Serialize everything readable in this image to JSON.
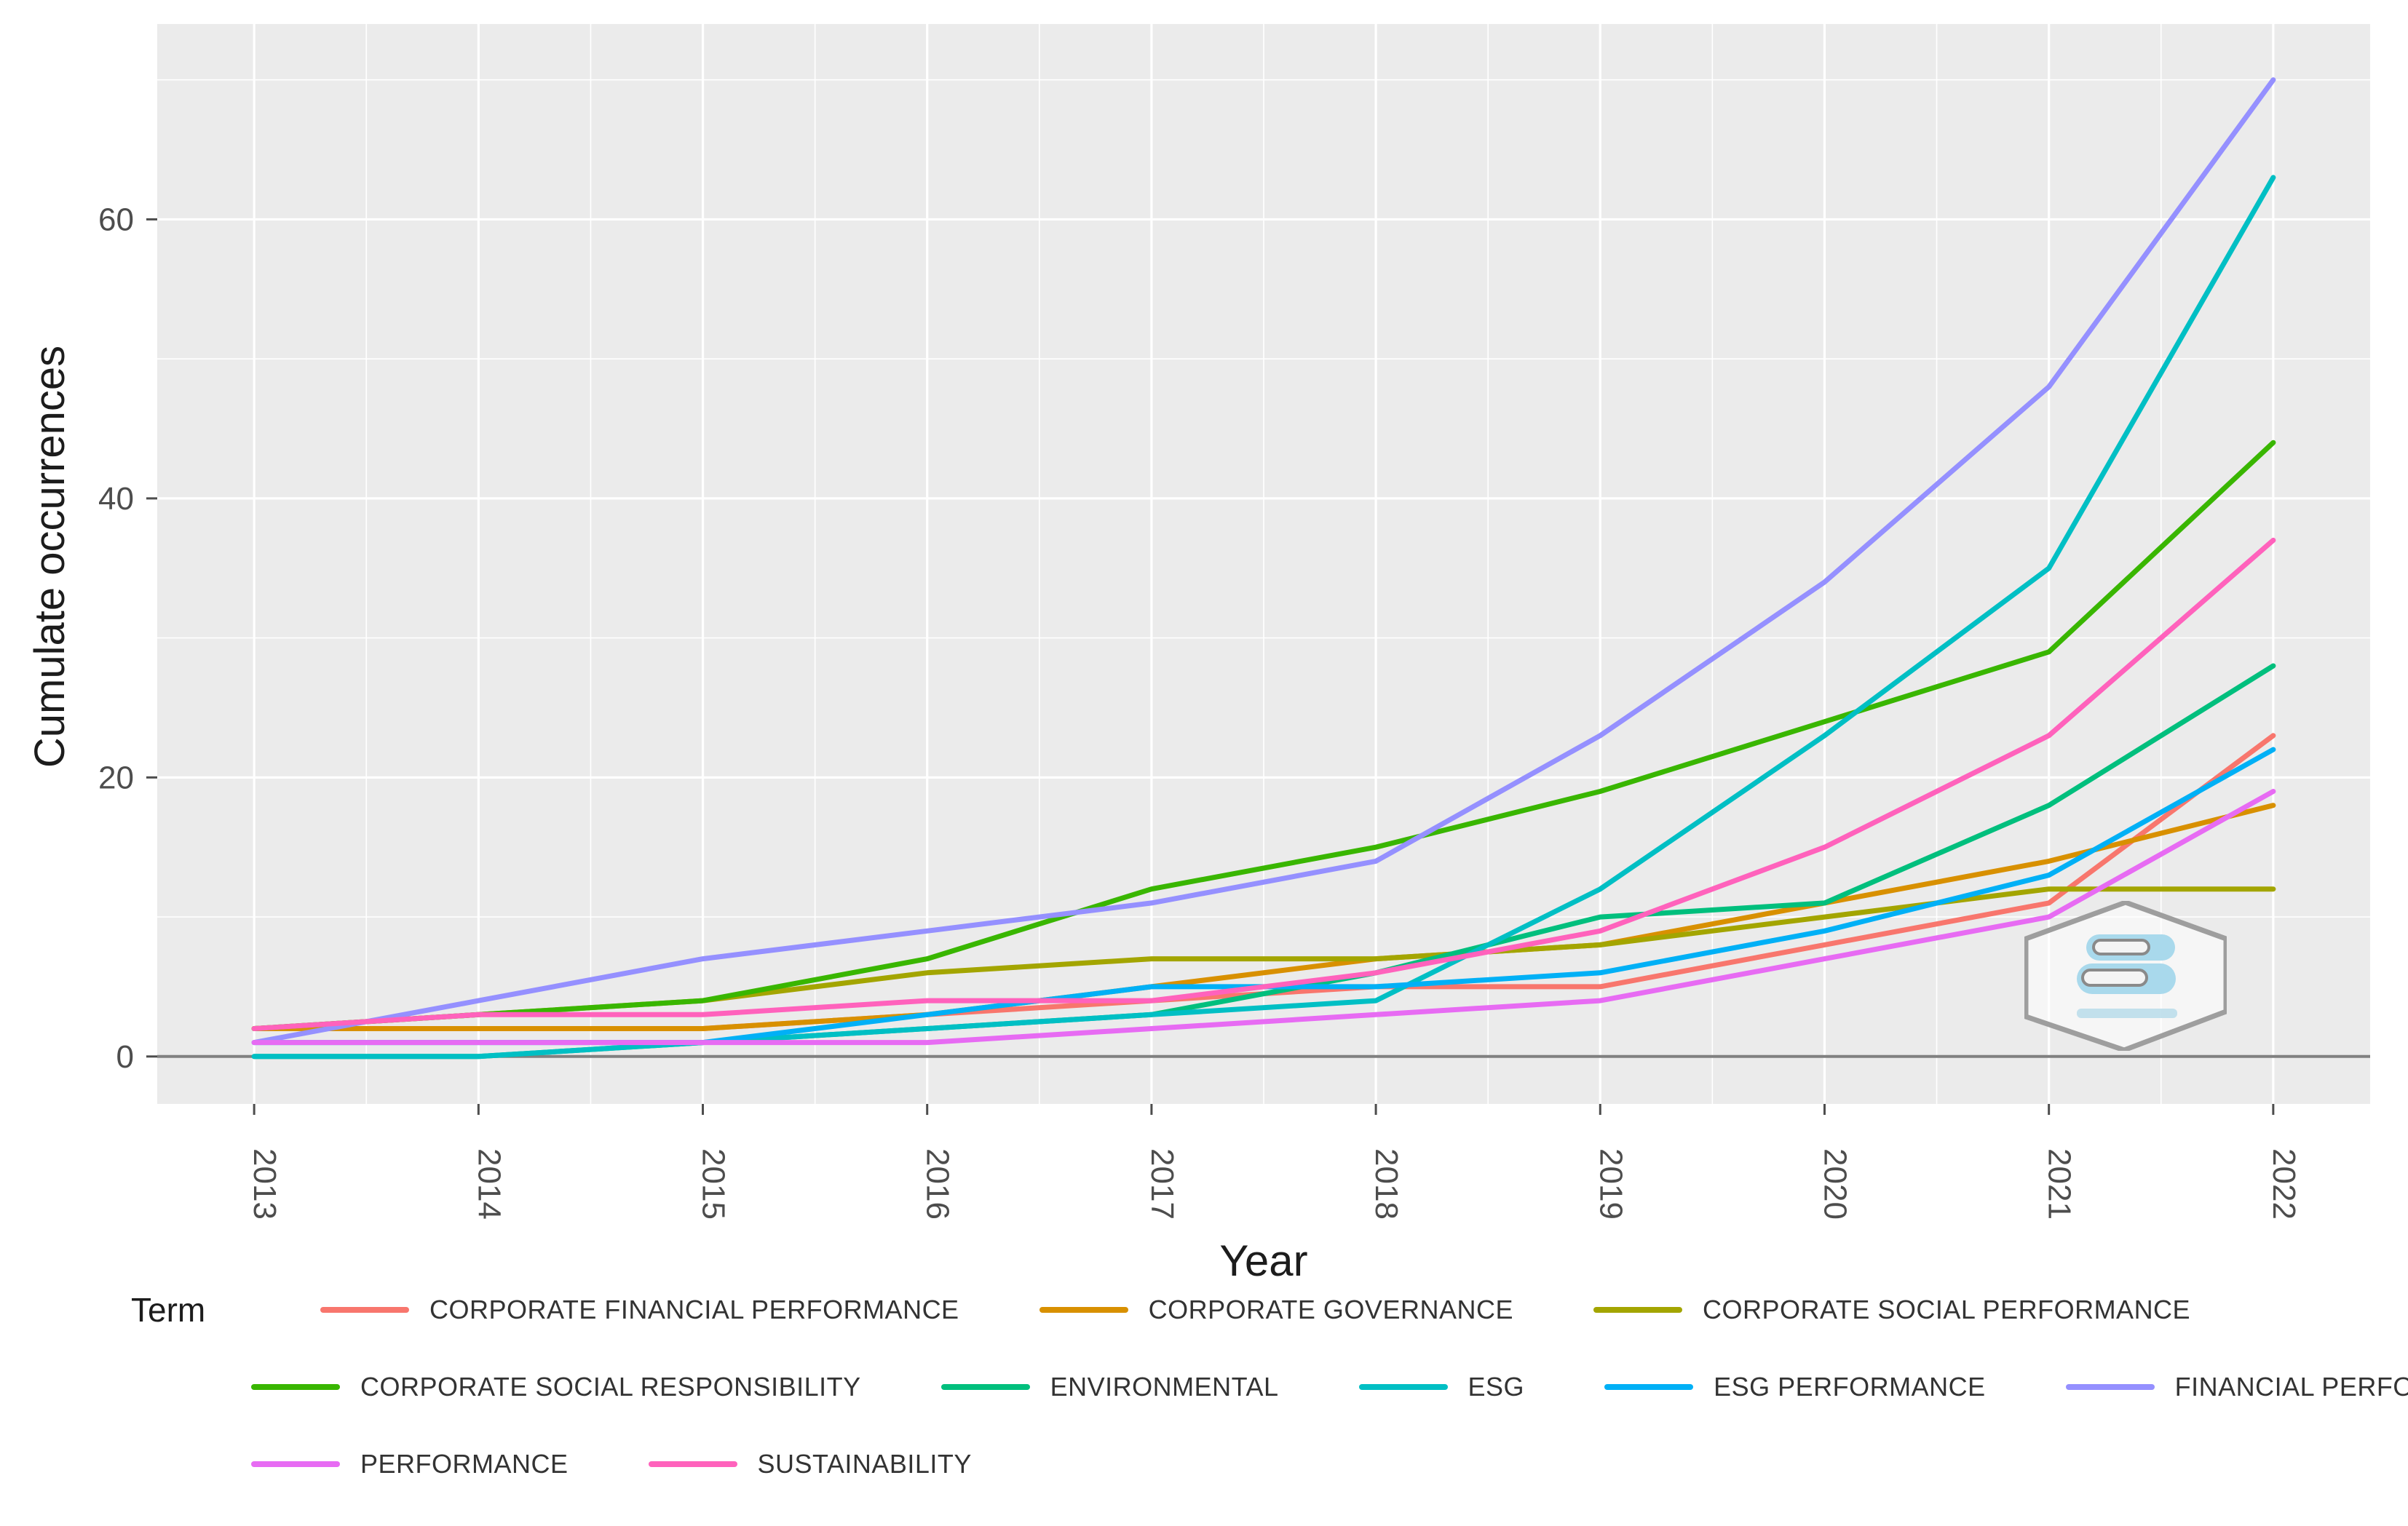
{
  "figure": {
    "background": "#ffffff",
    "panel_background": "#ebebeb",
    "grid_color": "#ffffff",
    "axis_text_color": "#4d4d4d",
    "axis_title_color": "#1c1c1c",
    "zero_line_color": "#808080"
  },
  "chart_data": {
    "type": "line",
    "title": "",
    "xlabel": "Year",
    "ylabel": "Cumulate occurrences",
    "legend_title": "Term",
    "legend_position": "bottom",
    "grid": true,
    "x": [
      2013,
      2014,
      2015,
      2016,
      2017,
      2018,
      2019,
      2020,
      2021,
      2022
    ],
    "xlim": [
      2012.568,
      2022.432
    ],
    "ylim": [
      -3.4,
      74.0
    ],
    "yticks": [
      0,
      20,
      40,
      60
    ],
    "minor_yticks": [
      10,
      30,
      50,
      70
    ],
    "series": [
      {
        "name": "CORPORATE FINANCIAL PERFORMANCE",
        "color": "#F8766D",
        "values": [
          2,
          2,
          2,
          3,
          4,
          5,
          5,
          8,
          11,
          23
        ]
      },
      {
        "name": "CORPORATE GOVERNANCE",
        "color": "#D89000",
        "values": [
          2,
          2,
          2,
          3,
          5,
          7,
          8,
          11,
          14,
          18
        ]
      },
      {
        "name": "CORPORATE SOCIAL PERFORMANCE",
        "color": "#A3A500",
        "values": [
          2,
          3,
          4,
          6,
          7,
          7,
          8,
          10,
          12,
          12
        ]
      },
      {
        "name": "CORPORATE SOCIAL RESPONSIBILITY",
        "color": "#39B600",
        "values": [
          2,
          3,
          4,
          7,
          12,
          15,
          19,
          24,
          29,
          44
        ]
      },
      {
        "name": "ENVIRONMENTAL",
        "color": "#00BF7D",
        "values": [
          0,
          0,
          1,
          2,
          3,
          6,
          10,
          11,
          18,
          28
        ]
      },
      {
        "name": "ESG",
        "color": "#00BFC4",
        "values": [
          0,
          0,
          1,
          2,
          3,
          4,
          12,
          23,
          35,
          63
        ]
      },
      {
        "name": "ESG PERFORMANCE",
        "color": "#00B0F6",
        "values": [
          1,
          1,
          1,
          3,
          5,
          5,
          6,
          9,
          13,
          22
        ]
      },
      {
        "name": "FINANCIAL PERFORMANCE",
        "color": "#9590FF",
        "values": [
          1,
          4,
          7,
          9,
          11,
          14,
          23,
          34,
          48,
          70
        ]
      },
      {
        "name": "PERFORMANCE",
        "color": "#E76BF3",
        "values": [
          1,
          1,
          1,
          1,
          2,
          3,
          4,
          7,
          10,
          19
        ]
      },
      {
        "name": "SUSTAINABILITY",
        "color": "#FF62BC",
        "values": [
          2,
          3,
          3,
          4,
          4,
          6,
          9,
          15,
          23,
          37
        ]
      }
    ],
    "legend_rows": [
      [
        0,
        1,
        2
      ],
      [
        3,
        4,
        5,
        6,
        7
      ],
      [
        8,
        9
      ]
    ]
  }
}
